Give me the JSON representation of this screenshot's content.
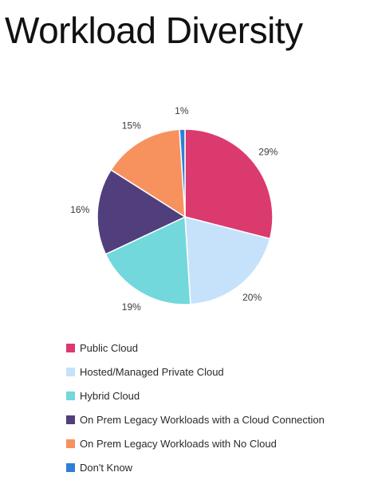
{
  "page_title": "Workload Diversity",
  "chart_data": {
    "type": "pie",
    "title": "Workload Diversity",
    "categories": [
      "Public Cloud",
      "Hosted/Managed Private Cloud",
      "Hybrid Cloud",
      "On Prem Legacy Workloads with a Cloud Connection",
      "On Prem Legacy Workloads with No Cloud",
      "Don't Know"
    ],
    "values": [
      29,
      20,
      19,
      16,
      15,
      1
    ],
    "value_labels": [
      "29%",
      "20%",
      "19%",
      "16%",
      "15%",
      "1%"
    ],
    "colors": [
      "#db3a6e",
      "#c6e2fb",
      "#72d8dc",
      "#513e7c",
      "#f7925f",
      "#2f7fd6"
    ],
    "start_angle": "12 o'clock",
    "direction": "clockwise",
    "legend": "bottom"
  }
}
